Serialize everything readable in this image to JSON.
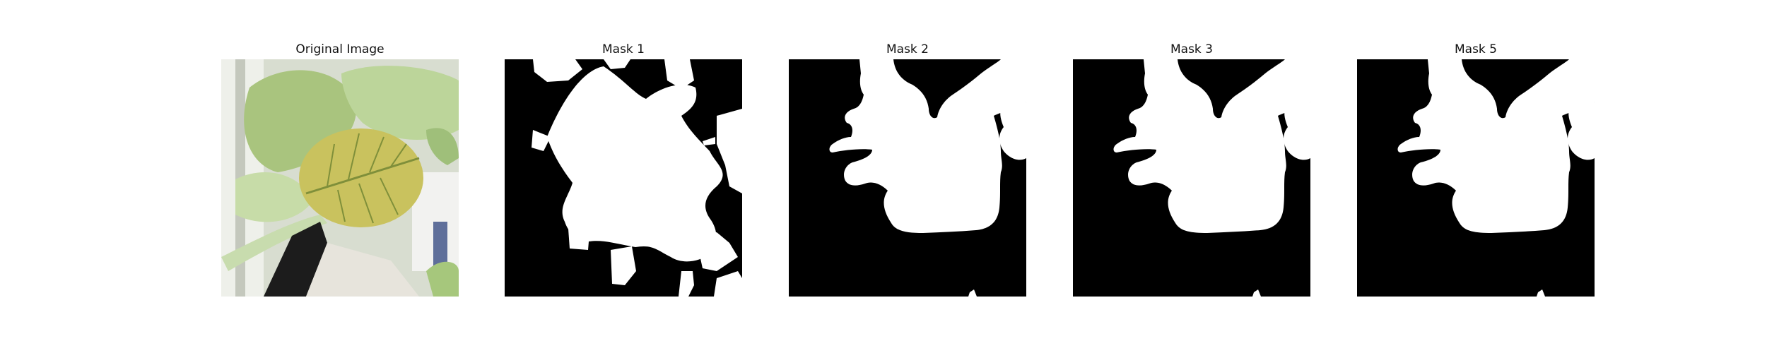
{
  "figure": {
    "panels": [
      {
        "title": "Original Image",
        "kind": "photo"
      },
      {
        "title": "Mask 1",
        "kind": "mask"
      },
      {
        "title": "Mask 2",
        "kind": "mask"
      },
      {
        "title": "Mask 3",
        "kind": "mask"
      },
      {
        "title": "Mask 5",
        "kind": "mask"
      }
    ]
  },
  "colors": {
    "mask_background": "#000000",
    "mask_foreground": "#ffffff",
    "leaf_light": "#b9cf8e",
    "leaf_yellow": "#c9c25e",
    "leaf_vein": "#7f8f3a",
    "pot_black": "#1c1c1c",
    "pot_white": "#e7e4dc"
  }
}
